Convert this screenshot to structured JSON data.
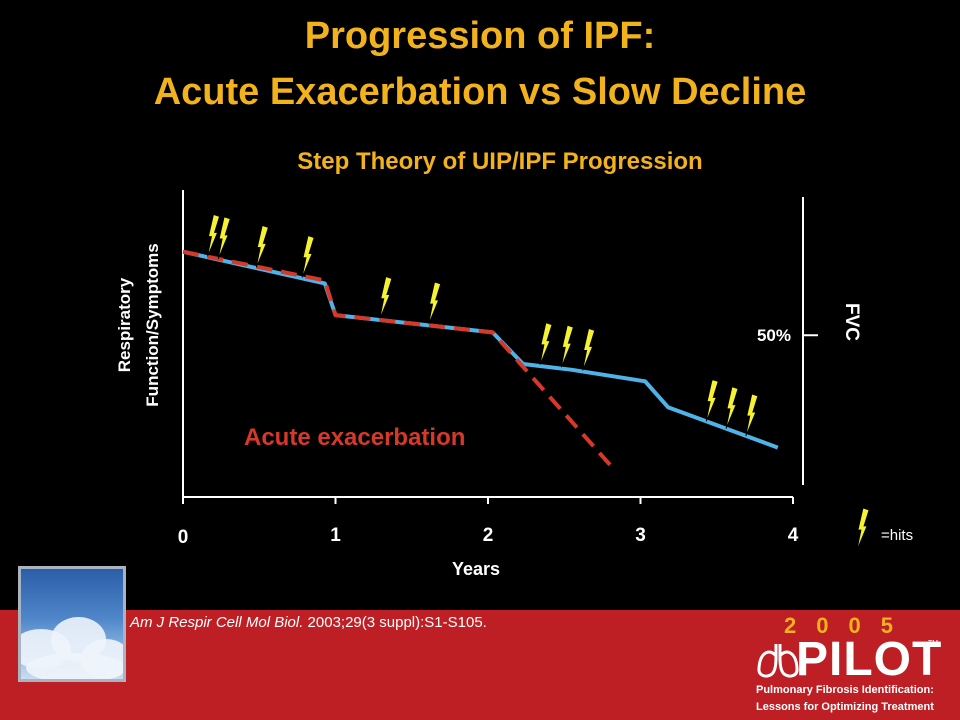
{
  "slide": {
    "title_line1": "Progression of IPF:",
    "title_line2": "Acute Exacerbation vs Slow Decline",
    "citation_journal": "Am J Respir Cell Mol Biol.",
    "citation_rest": " 2003;29(3 suppl):S1-S105.",
    "logo": {
      "year": "2005",
      "name": "PILOT",
      "tm": "TM",
      "tagline_line1": "Pulmonary Fibrosis Identification:",
      "tagline_line2": "Lessons for Optimizing Treatment"
    }
  },
  "colors": {
    "title": "#f2b21c",
    "slow_decline_line": "#4fb3e8",
    "acute_exacerbation_line": "#d6382a",
    "hit_bolt": "#f5f232",
    "footer": "#bd1f24"
  },
  "chart_data": {
    "type": "line",
    "title": "Step Theory of UIP/IPF Progression",
    "xlabel": "Years",
    "ylabel": "Respiratory Function/Symptoms",
    "y2label": "FVC",
    "y2_marker": {
      "label": "50%",
      "y": 52
    },
    "xlim": [
      0,
      4
    ],
    "ylim": [
      0,
      100
    ],
    "xticks": [
      0,
      1,
      2,
      3,
      4
    ],
    "grid": false,
    "series": [
      {
        "style": "solid",
        "points": [
          [
            0,
            81
          ],
          [
            0.93,
            70
          ],
          [
            1.0,
            59
          ],
          [
            2.03,
            53
          ],
          [
            2.23,
            42
          ],
          [
            2.55,
            40
          ],
          [
            3.03,
            36
          ],
          [
            3.18,
            27
          ],
          [
            3.9,
            13
          ]
        ]
      },
      {
        "name": "Acute exacerbation",
        "style": "dashed",
        "points": [
          [
            0,
            81
          ],
          [
            0.93,
            71
          ],
          [
            1.0,
            59
          ],
          [
            2.03,
            53
          ],
          [
            2.8,
            7
          ]
        ]
      }
    ],
    "annotations": [
      {
        "text": "Acute exacerbation",
        "x": 0.4,
        "y": 17
      }
    ],
    "hits": [
      0.2,
      0.27,
      0.52,
      0.82,
      1.33,
      1.65,
      2.38,
      2.52,
      2.66,
      3.47,
      3.6,
      3.73
    ],
    "legend": {
      "label": "=hits",
      "position": "right"
    }
  }
}
